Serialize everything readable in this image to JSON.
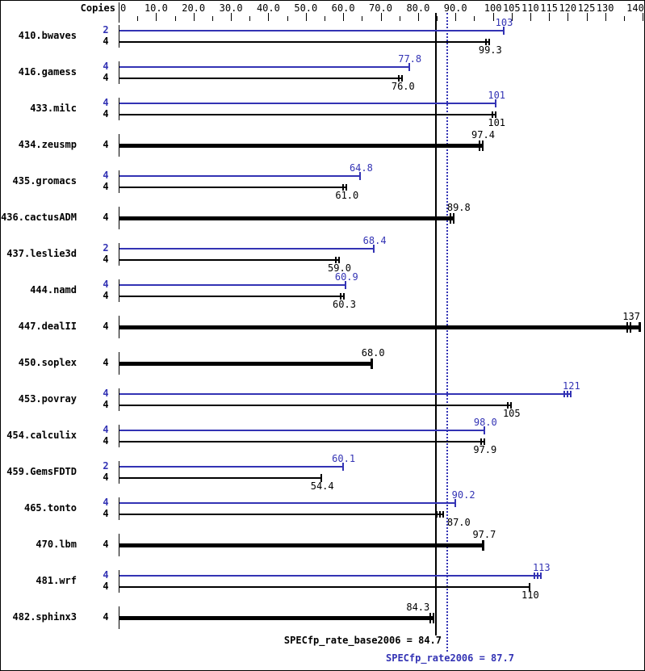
{
  "chart_data": {
    "type": "bar",
    "orientation": "horizontal",
    "title": "",
    "copies_header": "Copies",
    "xlim": [
      0,
      140
    ],
    "x_axis": {
      "labeled_ticks": [
        {
          "value": 0,
          "label": "0"
        },
        {
          "value": 10,
          "label": "10.0"
        },
        {
          "value": 20,
          "label": "20.0"
        },
        {
          "value": 30,
          "label": "30.0"
        },
        {
          "value": 40,
          "label": "40.0"
        },
        {
          "value": 50,
          "label": "50.0"
        },
        {
          "value": 60,
          "label": "60.0"
        },
        {
          "value": 70,
          "label": "70.0"
        },
        {
          "value": 80,
          "label": "80.0"
        },
        {
          "value": 90,
          "label": "90.0"
        },
        {
          "value": 100,
          "label": "100"
        },
        {
          "value": 105,
          "label": "105"
        },
        {
          "value": 110,
          "label": "110"
        },
        {
          "value": 115,
          "label": "115"
        },
        {
          "value": 120,
          "label": "120"
        },
        {
          "value": 125,
          "label": "125"
        },
        {
          "value": 130,
          "label": "130"
        },
        {
          "value": 140,
          "label": "140"
        }
      ],
      "minor_ticks": [
        5,
        15,
        25,
        35,
        45,
        55,
        65,
        75,
        85,
        95,
        135
      ]
    },
    "series_colors": {
      "peak": "#3333b4",
      "base": "#000000"
    },
    "reference_lines": [
      {
        "name": "base_average",
        "value": 84.7,
        "style": "solid",
        "color": "#000000"
      },
      {
        "name": "peak_average",
        "value": 87.7,
        "style": "dotted",
        "color": "#3333b4"
      }
    ],
    "benchmarks": [
      {
        "name": "410.bwaves",
        "bars": [
          {
            "series": "peak",
            "copies": "2",
            "value": 103,
            "label": "103",
            "end_ticks": 1
          },
          {
            "series": "base",
            "copies": "4",
            "value": 99.3,
            "label": "99.3",
            "end_ticks": 2
          }
        ]
      },
      {
        "name": "416.gamess",
        "bars": [
          {
            "series": "peak",
            "copies": "4",
            "value": 77.8,
            "label": "77.8",
            "end_ticks": 1
          },
          {
            "series": "base",
            "copies": "4",
            "value": 76.0,
            "label": "76.0",
            "end_ticks": 2
          }
        ]
      },
      {
        "name": "433.milc",
        "bars": [
          {
            "series": "peak",
            "copies": "4",
            "value": 101,
            "label": "101",
            "end_ticks": 1
          },
          {
            "series": "base",
            "copies": "4",
            "value": 101,
            "label": "101",
            "end_ticks": 2
          }
        ]
      },
      {
        "name": "434.zeusmp",
        "bars": [
          {
            "series": "base",
            "copies": "4",
            "value": 97.4,
            "label": "97.4",
            "end_ticks": 2,
            "thick": true
          }
        ]
      },
      {
        "name": "435.gromacs",
        "bars": [
          {
            "series": "peak",
            "copies": "4",
            "value": 64.8,
            "label": "64.8",
            "end_ticks": 1
          },
          {
            "series": "base",
            "copies": "4",
            "value": 61.0,
            "label": "61.0",
            "end_ticks": 2
          }
        ]
      },
      {
        "name": "436.cactusADM",
        "bars": [
          {
            "series": "base",
            "copies": "4",
            "value": 89.8,
            "label": "89.8",
            "end_ticks": 2,
            "thick": true,
            "label_dx": 5
          }
        ]
      },
      {
        "name": "437.leslie3d",
        "bars": [
          {
            "series": "peak",
            "copies": "2",
            "value": 68.4,
            "label": "68.4",
            "end_ticks": 1
          },
          {
            "series": "base",
            "copies": "4",
            "value": 59.0,
            "label": "59.0",
            "end_ticks": 2
          }
        ]
      },
      {
        "name": "444.namd",
        "bars": [
          {
            "series": "peak",
            "copies": "4",
            "value": 60.9,
            "label": "60.9",
            "end_ticks": 1
          },
          {
            "series": "base",
            "copies": "4",
            "value": 60.3,
            "label": "60.3",
            "end_ticks": 2
          }
        ]
      },
      {
        "name": "447.dealII",
        "bars": [
          {
            "series": "base",
            "copies": "4",
            "value": 137,
            "label": "137",
            "end_ticks": 2,
            "thick": true,
            "extend_to": 139.5
          }
        ]
      },
      {
        "name": "450.soplex",
        "bars": [
          {
            "series": "base",
            "copies": "4",
            "value": 68.0,
            "label": "68.0",
            "end_ticks": 1,
            "thick": true
          }
        ]
      },
      {
        "name": "453.povray",
        "bars": [
          {
            "series": "peak",
            "copies": "4",
            "value": 121,
            "label": "121",
            "end_ticks": 3
          },
          {
            "series": "base",
            "copies": "4",
            "value": 105,
            "label": "105",
            "end_ticks": 2
          }
        ]
      },
      {
        "name": "454.calculix",
        "bars": [
          {
            "series": "peak",
            "copies": "4",
            "value": 98.0,
            "label": "98.0",
            "end_ticks": 1
          },
          {
            "series": "base",
            "copies": "4",
            "value": 97.9,
            "label": "97.9",
            "end_ticks": 2
          }
        ]
      },
      {
        "name": "459.GemsFDTD",
        "bars": [
          {
            "series": "peak",
            "copies": "2",
            "value": 60.1,
            "label": "60.1",
            "end_ticks": 1
          },
          {
            "series": "base",
            "copies": "4",
            "value": 54.4,
            "label": "54.4",
            "end_ticks": 1
          }
        ]
      },
      {
        "name": "465.tonto",
        "bars": [
          {
            "series": "peak",
            "copies": "4",
            "value": 90.2,
            "label": "90.2",
            "end_ticks": 1,
            "label_dx": 9
          },
          {
            "series": "base",
            "copies": "4",
            "value": 87.0,
            "label": "87.0",
            "end_ticks": 3,
            "label_dx": 18
          }
        ]
      },
      {
        "name": "470.lbm",
        "bars": [
          {
            "series": "base",
            "copies": "4",
            "value": 97.7,
            "label": "97.7",
            "end_ticks": 1,
            "thick": true
          }
        ]
      },
      {
        "name": "481.wrf",
        "bars": [
          {
            "series": "peak",
            "copies": "4",
            "value": 113,
            "label": "113",
            "end_ticks": 3
          },
          {
            "series": "base",
            "copies": "4",
            "value": 110,
            "label": "110",
            "end_ticks": 1
          }
        ]
      },
      {
        "name": "482.sphinx3",
        "bars": [
          {
            "series": "base",
            "copies": "4",
            "value": 84.3,
            "label": "84.3",
            "end_ticks": 2,
            "thick": true,
            "label_dx": -20
          }
        ]
      }
    ]
  },
  "footer": {
    "base_summary": "SPECfp_rate_base2006 = 84.7",
    "peak_summary": "SPECfp_rate2006 = 87.7"
  }
}
